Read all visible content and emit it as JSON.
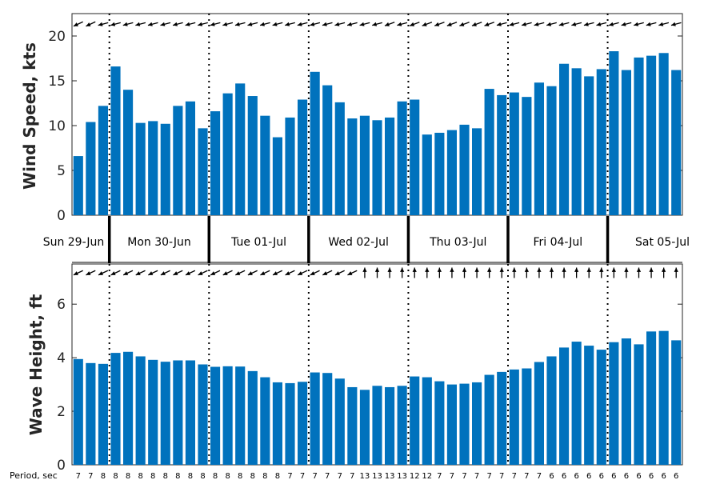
{
  "chart_data": [
    {
      "type": "bar",
      "ylabel": "Wind Speed, kts",
      "ylim": [
        0,
        22.5
      ],
      "yticks": [
        0,
        5,
        10,
        15,
        20
      ],
      "color": "#0072bd",
      "values": [
        6.6,
        10.4,
        12.2,
        16.6,
        14.0,
        10.3,
        10.5,
        10.2,
        12.2,
        12.7,
        9.7,
        11.6,
        13.6,
        14.7,
        13.3,
        11.1,
        8.7,
        10.9,
        12.9,
        16.0,
        14.5,
        12.6,
        10.8,
        11.1,
        10.6,
        10.9,
        12.7,
        12.9,
        9.0,
        9.2,
        9.5,
        10.1,
        9.7,
        14.1,
        13.4,
        13.7,
        13.2,
        14.8,
        14.4,
        16.9,
        16.4,
        15.5,
        16.3,
        18.3,
        16.2,
        17.6,
        17.8,
        18.1,
        16.2
      ],
      "direction_arrows_deg": [
        245,
        245,
        255,
        255,
        255,
        255,
        255,
        255,
        255,
        255,
        255,
        255,
        255,
        255,
        255,
        255,
        255,
        255,
        255,
        255,
        255,
        255,
        255,
        255,
        255,
        250,
        255,
        250,
        250,
        250,
        250,
        250,
        250,
        250,
        255,
        255,
        255,
        255,
        255,
        255,
        255,
        255,
        255,
        255,
        255,
        255,
        255,
        255,
        255
      ]
    },
    {
      "type": "bar",
      "ylabel": "Wave Height, ft",
      "ylim": [
        0,
        7.5
      ],
      "yticks": [
        0,
        2,
        4,
        6
      ],
      "color": "#0072bd",
      "values": [
        3.95,
        3.8,
        3.77,
        4.18,
        4.22,
        4.05,
        3.92,
        3.85,
        3.9,
        3.9,
        3.75,
        3.66,
        3.68,
        3.67,
        3.5,
        3.27,
        3.08,
        3.05,
        3.1,
        3.45,
        3.43,
        3.22,
        2.9,
        2.8,
        2.95,
        2.9,
        2.95,
        3.3,
        3.27,
        3.12,
        3.0,
        3.03,
        3.08,
        3.36,
        3.47,
        3.56,
        3.6,
        3.84,
        4.05,
        4.38,
        4.6,
        4.45,
        4.3,
        4.58,
        4.72,
        4.5,
        4.98,
        5.0,
        4.65
      ],
      "direction_arrows_deg": [
        245,
        245,
        245,
        245,
        245,
        245,
        245,
        245,
        245,
        245,
        245,
        245,
        245,
        245,
        245,
        245,
        245,
        245,
        245,
        245,
        245,
        245,
        245,
        0,
        0,
        0,
        0,
        0,
        0,
        0,
        0,
        0,
        0,
        0,
        0,
        0,
        0,
        0,
        0,
        0,
        0,
        0,
        0,
        0,
        0,
        0,
        0,
        0,
        0
      ]
    }
  ],
  "days": [
    "Sun 29-Jun",
    "Mon 30-Jun",
    "Tue 01-Jul",
    "Wed 02-Jul",
    "Thu 03-Jul",
    "Fri 04-Jul",
    "Sat 05-Jul"
  ],
  "day_starts": [
    3,
    11,
    19,
    27,
    35,
    43
  ],
  "period_label": "Period, sec",
  "periods": [
    "7",
    "7",
    "8",
    "8",
    "8",
    "8",
    "8",
    "8",
    "8",
    "8",
    "8",
    "8",
    "8",
    "8",
    "8",
    "8",
    "8",
    "7",
    "7",
    "7",
    "7",
    "7",
    "7",
    "13",
    "13",
    "13",
    "13",
    "12",
    "12",
    "7",
    "7",
    "7",
    "7",
    "7",
    "7",
    "7",
    "7",
    "7",
    "6",
    "6",
    "6",
    "6",
    "6",
    "6",
    "6",
    "6",
    "6",
    "6",
    "6"
  ]
}
